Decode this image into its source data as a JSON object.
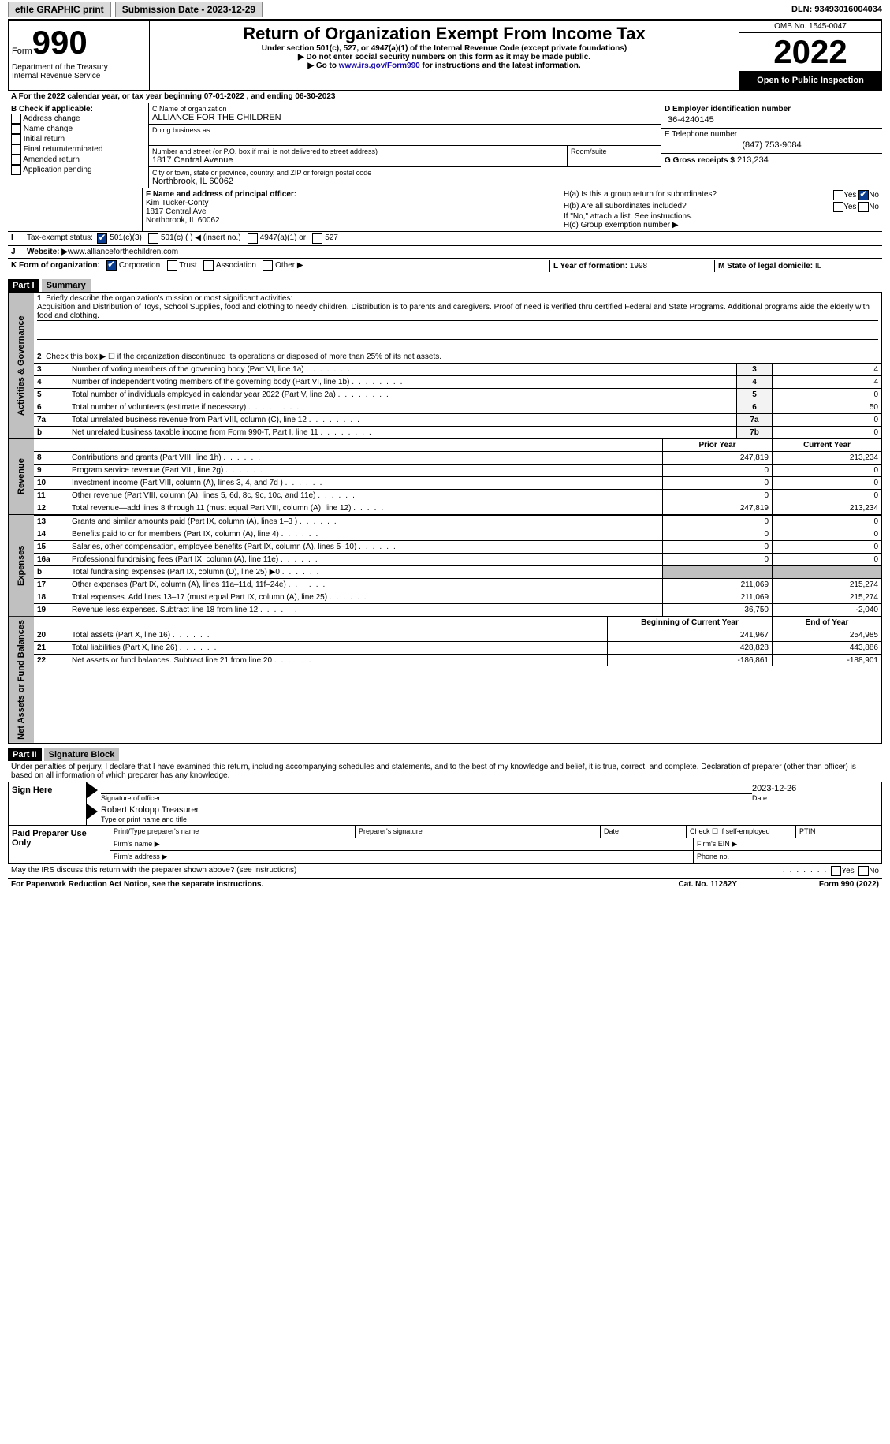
{
  "top": {
    "efile": "efile GRAPHIC print",
    "submission": "Submission Date - 2023-12-29",
    "dln": "DLN: 93493016004034"
  },
  "header": {
    "form": "Form",
    "num": "990",
    "dept": "Department of the Treasury",
    "irs": "Internal Revenue Service",
    "title": "Return of Organization Exempt From Income Tax",
    "sub1": "Under section 501(c), 527, or 4947(a)(1) of the Internal Revenue Code (except private foundations)",
    "sub2": "▶ Do not enter social security numbers on this form as it may be made public.",
    "sub3_pre": "▶ Go to ",
    "sub3_link": "www.irs.gov/Form990",
    "sub3_post": " for instructions and the latest information.",
    "omb": "OMB No. 1545-0047",
    "year": "2022",
    "open": "Open to Public Inspection"
  },
  "A": {
    "label": "A For the 2022 calendar year, or tax year beginning ",
    "begin": "07-01-2022",
    "mid": "    , and ending ",
    "end": "06-30-2023"
  },
  "B": {
    "title": "B Check if applicable:",
    "items": [
      "Address change",
      "Name change",
      "Initial return",
      "Final return/terminated",
      "Amended return",
      "Application pending"
    ]
  },
  "C": {
    "nameLbl": "C Name of organization",
    "name": "ALLIANCE FOR THE CHILDREN",
    "dbaLbl": "Doing business as",
    "addrLbl": "Number and street (or P.O. box if mail is not delivered to street address)",
    "roomLbl": "Room/suite",
    "addr": "1817 Central Avenue",
    "cityLbl": "City or town, state or province, country, and ZIP or foreign postal code",
    "city": "Northbrook, IL  60062"
  },
  "D": {
    "einLbl": "D Employer identification number",
    "ein": "36-4240145"
  },
  "E": {
    "phoneLbl": "E Telephone number",
    "phone": "(847) 753-9084"
  },
  "G": {
    "grossLbl": "G Gross receipts $",
    "gross": "213,234"
  },
  "F": {
    "lbl": "F  Name and address of principal officer:",
    "name": "Kim Tucker-Conty",
    "addr": "1817 Central Ave",
    "city": "Northbrook, IL  60062"
  },
  "H": {
    "a": "H(a)  Is this a group return for subordinates?",
    "b": "H(b)  Are all subordinates included?",
    "bno": "If \"No,\" attach a list. See instructions.",
    "c": "H(c)  Group exemption number ▶",
    "yes": "Yes",
    "no": "No"
  },
  "I": {
    "lbl": "Tax-exempt status:",
    "opts": [
      "501(c)(3)",
      "501(c) (  ) ◀ (insert no.)",
      "4947(a)(1) or",
      "527"
    ]
  },
  "J": {
    "lbl": "Website: ▶",
    "val": "  www.allianceforthechildren.com"
  },
  "K": {
    "lbl": "K Form of organization:",
    "opts": [
      "Corporation",
      "Trust",
      "Association",
      "Other ▶"
    ]
  },
  "L": {
    "lbl": "L Year of formation: ",
    "val": "1998"
  },
  "M": {
    "lbl": "M State of legal domicile: ",
    "val": "IL"
  },
  "parts": {
    "p1": "Part I",
    "p1t": "Summary",
    "p2": "Part II",
    "p2t": "Signature Block"
  },
  "summary": {
    "l1": "Briefly describe the organization's mission or most significant activities:",
    "l1txt": "Acquisition and Distribution of Toys, School Supplies, food and clothing to needy children. Distribution is to parents and caregivers. Proof of need is verified thru certified Federal and State Programs. Additional programs aide the elderly with food and clothing.",
    "l2": "Check this box ▶ ☐  if the organization discontinued its operations or disposed of more than 25% of its net assets.",
    "rows": [
      {
        "n": "3",
        "t": "Number of voting members of the governing body (Part VI, line 1a)",
        "box": "3",
        "v": "4"
      },
      {
        "n": "4",
        "t": "Number of independent voting members of the governing body (Part VI, line 1b)",
        "box": "4",
        "v": "4"
      },
      {
        "n": "5",
        "t": "Total number of individuals employed in calendar year 2022 (Part V, line 2a)",
        "box": "5",
        "v": "0"
      },
      {
        "n": "6",
        "t": "Total number of volunteers (estimate if necessary)",
        "box": "6",
        "v": "50"
      },
      {
        "n": "7a",
        "t": "Total unrelated business revenue from Part VIII, column (C), line 12",
        "box": "7a",
        "v": "0"
      },
      {
        "n": "b",
        "t": "Net unrelated business taxable income from Form 990-T, Part I, line 11",
        "box": "7b",
        "v": "0"
      }
    ],
    "hdrPrior": "Prior Year",
    "hdrCurr": "Current Year",
    "rev": [
      {
        "n": "8",
        "t": "Contributions and grants (Part VIII, line 1h)",
        "p": "247,819",
        "c": "213,234"
      },
      {
        "n": "9",
        "t": "Program service revenue (Part VIII, line 2g)",
        "p": "0",
        "c": "0"
      },
      {
        "n": "10",
        "t": "Investment income (Part VIII, column (A), lines 3, 4, and 7d )",
        "p": "0",
        "c": "0"
      },
      {
        "n": "11",
        "t": "Other revenue (Part VIII, column (A), lines 5, 6d, 8c, 9c, 10c, and 11e)",
        "p": "0",
        "c": "0"
      },
      {
        "n": "12",
        "t": "Total revenue—add lines 8 through 11 (must equal Part VIII, column (A), line 12)",
        "p": "247,819",
        "c": "213,234"
      }
    ],
    "exp": [
      {
        "n": "13",
        "t": "Grants and similar amounts paid (Part IX, column (A), lines 1–3 )",
        "p": "0",
        "c": "0"
      },
      {
        "n": "14",
        "t": "Benefits paid to or for members (Part IX, column (A), line 4)",
        "p": "0",
        "c": "0"
      },
      {
        "n": "15",
        "t": "Salaries, other compensation, employee benefits (Part IX, column (A), lines 5–10)",
        "p": "0",
        "c": "0"
      },
      {
        "n": "16a",
        "t": "Professional fundraising fees (Part IX, column (A), line 11e)",
        "p": "0",
        "c": "0"
      },
      {
        "n": "b",
        "t": "Total fundraising expenses (Part IX, column (D), line 25) ▶0",
        "p": "",
        "c": "",
        "gray": true
      },
      {
        "n": "17",
        "t": "Other expenses (Part IX, column (A), lines 11a–11d, 11f–24e)",
        "p": "211,069",
        "c": "215,274"
      },
      {
        "n": "18",
        "t": "Total expenses. Add lines 13–17 (must equal Part IX, column (A), line 25)",
        "p": "211,069",
        "c": "215,274"
      },
      {
        "n": "19",
        "t": "Revenue less expenses. Subtract line 18 from line 12",
        "p": "36,750",
        "c": "-2,040"
      }
    ],
    "hdrBeg": "Beginning of Current Year",
    "hdrEnd": "End of Year",
    "net": [
      {
        "n": "20",
        "t": "Total assets (Part X, line 16)",
        "p": "241,967",
        "c": "254,985"
      },
      {
        "n": "21",
        "t": "Total liabilities (Part X, line 26)",
        "p": "428,828",
        "c": "443,886"
      },
      {
        "n": "22",
        "t": "Net assets or fund balances. Subtract line 21 from line 20",
        "p": "-186,861",
        "c": "-188,901"
      }
    ],
    "vlabels": {
      "act": "Activities & Governance",
      "rev": "Revenue",
      "exp": "Expenses",
      "net": "Net Assets or Fund Balances"
    }
  },
  "sig": {
    "decl": "Under penalties of perjury, I declare that I have examined this return, including accompanying schedules and statements, and to the best of my knowledge and belief, it is true, correct, and complete. Declaration of preparer (other than officer) is based on all information of which preparer has any knowledge.",
    "signHere": "Sign Here",
    "date": "2023-12-26",
    "sigOfficer": "Signature of officer",
    "dateLbl": "Date",
    "name": "Robert Krolopp  Treasurer",
    "typeLbl": "Type or print name and title",
    "paid": "Paid Preparer Use Only",
    "pp": {
      "print": "Print/Type preparer's name",
      "psig": "Preparer's signature",
      "pdate": "Date",
      "self": "Check ☐ if self-employed",
      "ptin": "PTIN",
      "firmN": "Firm's name  ▶",
      "firmE": "Firm's EIN ▶",
      "firmA": "Firm's address ▶",
      "phone": "Phone no."
    }
  },
  "footer": {
    "discuss": "May the IRS discuss this return with the preparer shown above? (see instructions)",
    "paper": "For Paperwork Reduction Act Notice, see the separate instructions.",
    "cat": "Cat. No. 11282Y",
    "form": "Form 990 (2022)",
    "yes": "Yes",
    "no": "No"
  }
}
